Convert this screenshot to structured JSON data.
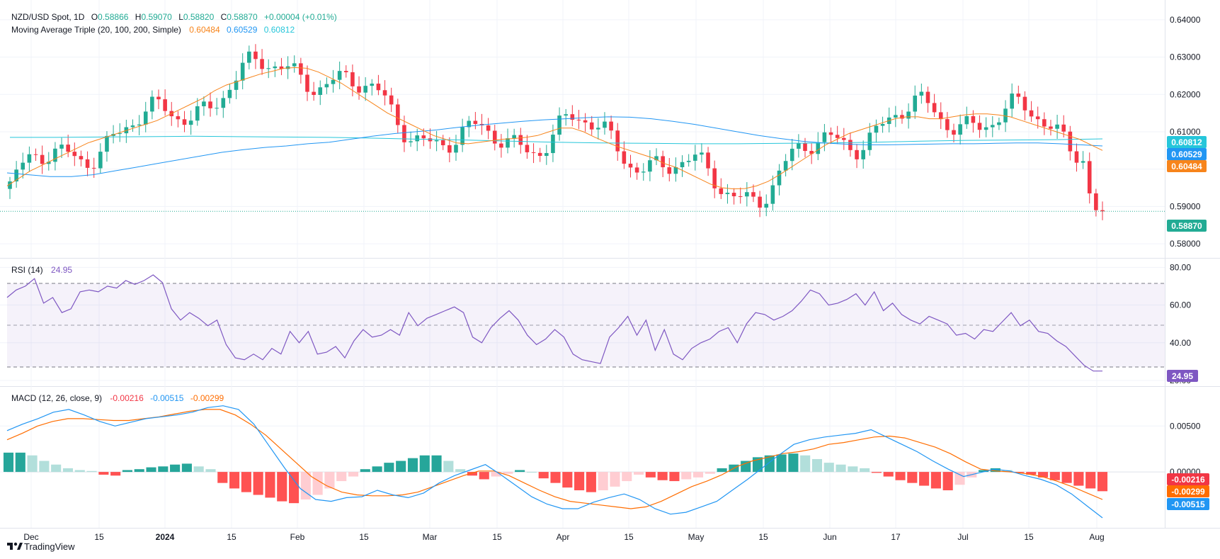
{
  "header": {
    "symbol": "NZD/USD Spot, 1D",
    "open_label": "O",
    "open": "0.58866",
    "high_label": "H",
    "high": "0.59070",
    "low_label": "L",
    "low": "0.58820",
    "close_label": "C",
    "close": "0.58870",
    "change": "+0.00004 (+0.01%)"
  },
  "ma_legend": {
    "label": "Moving Average Triple (20, 100, 200, Simple)",
    "ma20": "0.60484",
    "ma100": "0.60529",
    "ma200": "0.60812"
  },
  "rsi_legend": {
    "label": "RSI (14)",
    "value": "24.95"
  },
  "macd_legend": {
    "label": "MACD (12, 26, close, 9)",
    "hist": "-0.00216",
    "macd": "-0.00515",
    "signal": "-0.00299"
  },
  "badges": {
    "ma200": "0.60812",
    "ma100": "0.60529",
    "ma20": "0.60484",
    "price": "0.58870",
    "rsi": "24.95",
    "hist": "-0.00216",
    "signal": "-0.00299",
    "macd": "-0.00515"
  },
  "logo_text": "TradingView",
  "colors": {
    "up": "#22ab94",
    "down": "#f23645",
    "ma20": "#f7841b",
    "ma100": "#2196f3",
    "ma200": "#26c6da",
    "rsi": "#7e57c2",
    "macd": "#2196f3",
    "signal": "#ff6d00",
    "hist_up_strong": "#26a69a",
    "hist_up_weak": "#b2dfdb",
    "hist_down_strong": "#ff5252",
    "hist_down_weak": "#ffcdd2"
  },
  "chart_data": [
    {
      "type": "candlestick",
      "title": "NZD/USD Spot, 1D",
      "ylim": [
        0.5785,
        0.6415
      ],
      "y_ticks": [
        "0.64000",
        "0.63000",
        "0.62000",
        "0.61000",
        "0.60000",
        "0.59000",
        "0.58000"
      ],
      "x_ticks": [
        "Dec",
        "15",
        "2024",
        "15",
        "Feb",
        "15",
        "Mar",
        "15",
        "Apr",
        "15",
        "May",
        "15",
        "Jun",
        "17",
        "Jul",
        "15",
        "Aug"
      ],
      "last_price": 0.5887,
      "series": [
        {
          "name": "MA 20",
          "values": [
            0.5955,
            0.5975,
            0.5995,
            0.601,
            0.6025,
            0.604,
            0.6055,
            0.607,
            0.608,
            0.609,
            0.61,
            0.611,
            0.612,
            0.613,
            0.6145,
            0.616,
            0.6175,
            0.619,
            0.621,
            0.6225,
            0.6235,
            0.6245,
            0.6255,
            0.6262,
            0.627,
            0.6272,
            0.627,
            0.626,
            0.6245,
            0.623,
            0.621,
            0.619,
            0.617,
            0.615,
            0.6135,
            0.612,
            0.6105,
            0.609,
            0.608,
            0.607,
            0.6068,
            0.6072,
            0.6076,
            0.608,
            0.6082,
            0.6085,
            0.609,
            0.61,
            0.611,
            0.611,
            0.61,
            0.6085,
            0.6072,
            0.606,
            0.605,
            0.604,
            0.603,
            0.6015,
            0.6005,
            0.599,
            0.5975,
            0.596,
            0.595,
            0.5947,
            0.5948,
            0.5955,
            0.5967,
            0.5985,
            0.6005,
            0.6025,
            0.6045,
            0.6065,
            0.608,
            0.6095,
            0.6105,
            0.6115,
            0.6125,
            0.6135,
            0.614,
            0.614,
            0.6135,
            0.6135,
            0.614,
            0.6145,
            0.6148,
            0.6148,
            0.6145,
            0.614,
            0.613,
            0.612,
            0.611,
            0.61,
            0.609,
            0.608,
            0.6065,
            0.605
          ]
        },
        {
          "name": "MA 100",
          "values": [
            0.599,
            0.5985,
            0.598,
            0.598,
            0.5985,
            0.5995,
            0.6005,
            0.6015,
            0.6025,
            0.6035,
            0.6045,
            0.6052,
            0.6058,
            0.6062,
            0.6068,
            0.6072,
            0.608,
            0.6088,
            0.6095,
            0.61,
            0.6105,
            0.6112,
            0.6118,
            0.6123,
            0.6128,
            0.6132,
            0.6135,
            0.6138,
            0.614,
            0.6139,
            0.6135,
            0.6128,
            0.612,
            0.611,
            0.61,
            0.609,
            0.6082,
            0.6075,
            0.607,
            0.6067,
            0.6065,
            0.6065,
            0.6066,
            0.6067,
            0.6068,
            0.6068,
            0.6069,
            0.607,
            0.607,
            0.6068,
            0.6065,
            0.6062
          ]
        },
        {
          "name": "MA 200",
          "values": [
            0.6085,
            0.6085,
            0.6086,
            0.6087,
            0.6088,
            0.6087,
            0.6086,
            0.6085,
            0.6083,
            0.608,
            0.6078,
            0.6075,
            0.6072,
            0.607,
            0.6069,
            0.6068,
            0.6068,
            0.6069,
            0.607,
            0.6072,
            0.6075,
            0.6077,
            0.6078,
            0.6079,
            0.6081
          ]
        }
      ]
    },
    {
      "type": "line",
      "title": "RSI (14)",
      "ylim": [
        17,
        82
      ],
      "y_ticks": [
        "80.00",
        "60.00",
        "40.00",
        "20.00"
      ],
      "bands": [
        70,
        50,
        30
      ],
      "series": [
        {
          "name": "RSI",
          "values": [
            64,
            68,
            70,
            74,
            61,
            64,
            56,
            58,
            67,
            68,
            67,
            70,
            69,
            73,
            71,
            73,
            76,
            72,
            58,
            52,
            56,
            53,
            49,
            52,
            39,
            32,
            31,
            34,
            31,
            37,
            34,
            46,
            40,
            46,
            34,
            35,
            38,
            32,
            41,
            47,
            43,
            44,
            47,
            44,
            56,
            49,
            53,
            55,
            57,
            59,
            56,
            43,
            40,
            48,
            53,
            57,
            52,
            44,
            39,
            42,
            47,
            43,
            34,
            31,
            30,
            29,
            43,
            48,
            54,
            44,
            52,
            36,
            47,
            34,
            31,
            37,
            40,
            42,
            46,
            48,
            40,
            50,
            56,
            55,
            52,
            54,
            57,
            62,
            68,
            66,
            60,
            61,
            63,
            66,
            60,
            67,
            57,
            61,
            55,
            52,
            50,
            54,
            52,
            50,
            44,
            45,
            42,
            47,
            46,
            51,
            56,
            49,
            52,
            46,
            45,
            41,
            38,
            33,
            28,
            25,
            25
          ]
        }
      ]
    },
    {
      "type": "bar+line",
      "title": "MACD (12, 26, close, 9)",
      "ylim": [
        -0.0057,
        0.0088
      ],
      "y_ticks": [
        "0.00500",
        "0.00000"
      ],
      "series": [
        {
          "name": "MACD",
          "values": [
            0.0045,
            0.0052,
            0.0058,
            0.0065,
            0.0068,
            0.0062,
            0.0055,
            0.005,
            0.0054,
            0.0058,
            0.006,
            0.0062,
            0.0065,
            0.007,
            0.0072,
            0.0068,
            0.0052,
            0.0028,
            0.0004,
            -0.0018,
            -0.003,
            -0.0032,
            -0.0028,
            -0.0027,
            -0.002,
            -0.0025,
            -0.0028,
            -0.0023,
            -0.0012,
            -0.0004,
            0.0002,
            0.0008,
            -0.0003,
            -0.0015,
            -0.0027,
            -0.0035,
            -0.004,
            -0.004,
            -0.0033,
            -0.0028,
            -0.0024,
            -0.003,
            -0.004,
            -0.0046,
            -0.0044,
            -0.0038,
            -0.0032,
            -0.002,
            -0.0008,
            0.0005,
            0.0018,
            0.003,
            0.0035,
            0.0038,
            0.004,
            0.0042,
            0.0046,
            0.0038,
            0.003,
            0.0022,
            0.0012,
            0.0003,
            -0.0005,
            -0.0001,
            0.0003,
            0.0001,
            -0.0004,
            -0.0008,
            -0.0014,
            -0.0024,
            -0.0037,
            -0.005
          ]
        },
        {
          "name": "Signal",
          "values": [
            0.0035,
            0.0042,
            0.005,
            0.0055,
            0.0058,
            0.0058,
            0.0057,
            0.0056,
            0.0056,
            0.0058,
            0.006,
            0.0063,
            0.0066,
            0.0068,
            0.0068,
            0.0062,
            0.0052,
            0.004,
            0.0025,
            0.001,
            -0.0005,
            -0.0015,
            -0.0022,
            -0.0025,
            -0.0026,
            -0.0026,
            -0.0025,
            -0.0022,
            -0.0016,
            -0.001,
            -0.0004,
            0.0001,
            0.0001,
            -0.0004,
            -0.0012,
            -0.002,
            -0.0027,
            -0.0032,
            -0.0034,
            -0.0036,
            -0.0038,
            -0.004,
            -0.0038,
            -0.0032,
            -0.0024,
            -0.0016,
            -0.001,
            -0.0003,
            0.0006,
            0.0012,
            0.0016,
            0.002,
            0.0022,
            0.0025,
            0.003,
            0.0032,
            0.0035,
            0.0038,
            0.0039,
            0.0037,
            0.0032,
            0.0027,
            0.002,
            0.0011,
            0.0003,
            0.0001,
            0.0,
            -0.0002,
            -0.0005,
            -0.001,
            -0.0016,
            -0.0023,
            -0.003
          ]
        },
        {
          "name": "Histogram",
          "values": [
            0.0021,
            0.0021,
            0.0018,
            0.0012,
            0.0008,
            0.0004,
            0.0002,
            0.0001,
            -0.0003,
            -0.0004,
            0.0002,
            0.0003,
            0.0005,
            0.0006,
            0.0008,
            0.0009,
            0.0006,
            0.0003,
            -0.0012,
            -0.0018,
            -0.0022,
            -0.0025,
            -0.0028,
            -0.0032,
            -0.0034,
            -0.003,
            -0.0025,
            -0.0018,
            -0.001,
            -0.0005,
            0.0003,
            0.0006,
            0.001,
            0.0012,
            0.0015,
            0.0018,
            0.0018,
            0.0012,
            0.0003,
            -0.0004,
            -0.0008,
            -0.0005,
            -0.0002,
            0.0002,
            0.0,
            -0.0007,
            -0.0012,
            -0.0017,
            -0.002,
            -0.0022,
            -0.002,
            -0.0016,
            -0.001,
            -0.0003,
            -0.0006,
            -0.0009,
            -0.001,
            -0.0008,
            -0.0006,
            -0.0002,
            0.0004,
            0.0008,
            0.0012,
            0.0016,
            0.0018,
            0.0019,
            0.002,
            0.0018,
            0.0014,
            0.001,
            0.0008,
            0.0006,
            0.0004,
            -0.0001,
            -0.0005,
            -0.0009,
            -0.0012,
            -0.0015,
            -0.0018,
            -0.002,
            -0.0014,
            -0.0006,
            0.0002,
            0.0004,
            0.0002,
            -0.0001,
            -0.0003,
            -0.0006,
            -0.0009,
            -0.0012,
            -0.0015,
            -0.0018,
            -0.0021
          ]
        }
      ]
    }
  ]
}
